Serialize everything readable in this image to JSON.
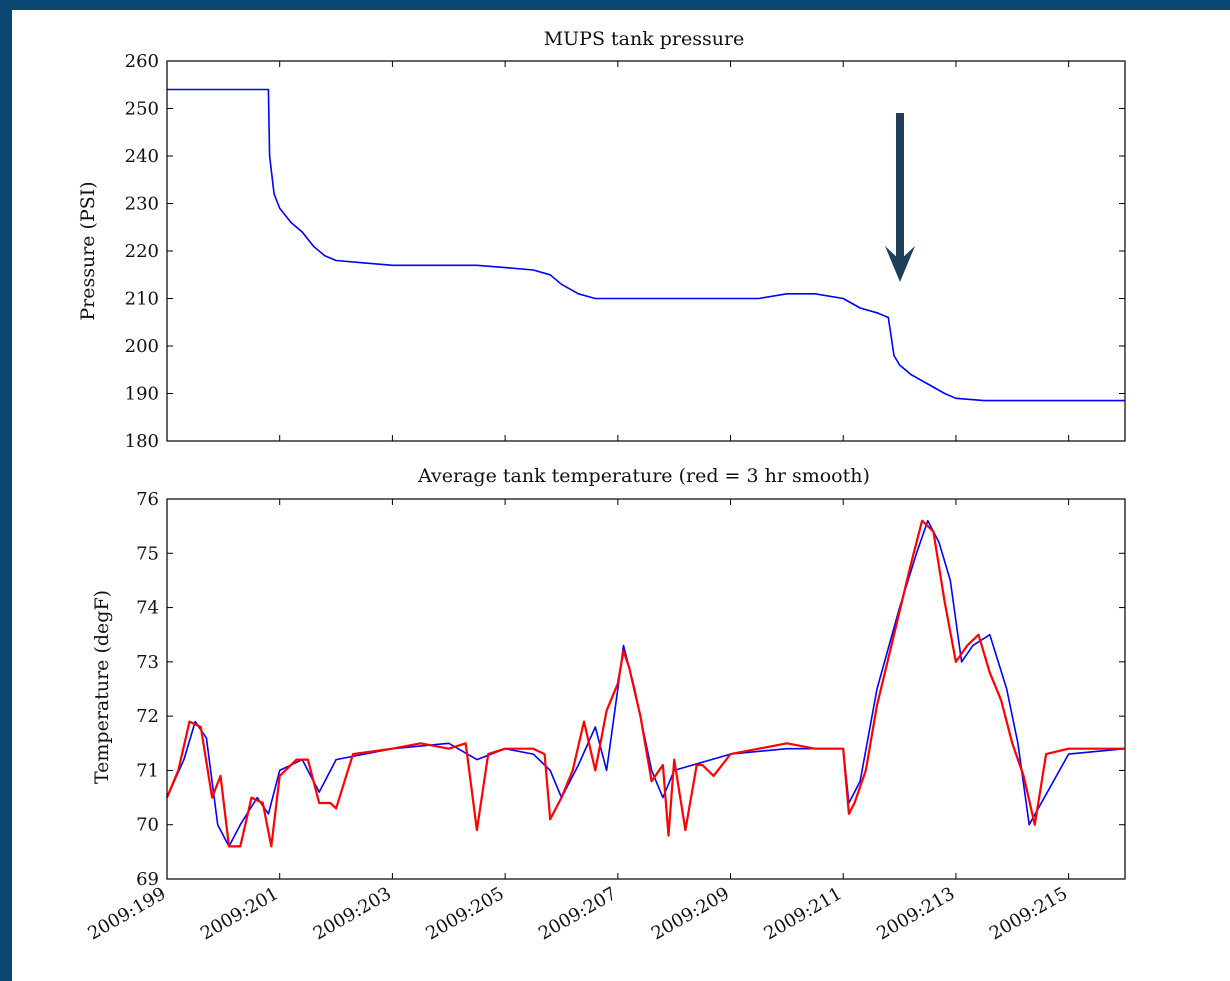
{
  "chart_data": [
    {
      "type": "line",
      "title": "MUPS tank pressure",
      "xlabel": "",
      "ylabel": "Pressure (PSI)",
      "xlim": [
        199,
        216
      ],
      "ylim": [
        180,
        260
      ],
      "yticks": [
        180,
        190,
        200,
        210,
        220,
        230,
        240,
        250,
        260
      ],
      "grid": false,
      "annotation": "downward arrow at day 212",
      "colors": {
        "line": "#0000ff",
        "arrow": "#1f3f5a"
      },
      "series": [
        {
          "color": "#0000ff",
          "x": [
            199.0,
            199.8,
            200.5,
            200.8,
            200.82,
            200.9,
            201.0,
            201.2,
            201.4,
            201.6,
            201.8,
            202.0,
            202.5,
            203.0,
            203.5,
            204.0,
            204.5,
            205.0,
            205.5,
            205.8,
            206.0,
            206.3,
            206.6,
            207.0,
            207.5,
            208.0,
            208.5,
            209.0,
            209.5,
            210.0,
            210.5,
            211.0,
            211.3,
            211.6,
            211.8,
            211.9,
            212.0,
            212.2,
            212.5,
            212.8,
            213.0,
            213.5,
            214.0,
            215.0,
            216.0
          ],
          "y": [
            254,
            254,
            254,
            254,
            240,
            232,
            229,
            226,
            224,
            221,
            219,
            218,
            217.5,
            217,
            217,
            217,
            217,
            216.5,
            216,
            215,
            213,
            211,
            210,
            210,
            210,
            210,
            210,
            210,
            210,
            211,
            211,
            210,
            208,
            207,
            206,
            198,
            196,
            194,
            192,
            190,
            189,
            188.5,
            188.5,
            188.5,
            188.5
          ]
        }
      ]
    },
    {
      "type": "line",
      "title": "Average tank temperature (red = 3 hr smooth)",
      "xlabel": "",
      "ylabel": "Temperature (degF)",
      "xlim": [
        199,
        216
      ],
      "ylim": [
        69,
        76
      ],
      "yticks": [
        69,
        70,
        71,
        72,
        73,
        74,
        75,
        76
      ],
      "xticks": [
        "2009:199",
        "2009:201",
        "2009:203",
        "2009:205",
        "2009:207",
        "2009:209",
        "2009:211",
        "2009:213",
        "2009:215"
      ],
      "grid": false,
      "colors": {
        "raw": "#0000ff",
        "smooth": "#ff0000"
      },
      "series": [
        {
          "color": "#0000ff",
          "x": [
            199.0,
            199.3,
            199.5,
            199.7,
            199.9,
            200.1,
            200.3,
            200.6,
            200.8,
            201.0,
            201.4,
            201.7,
            202.0,
            203.0,
            204.0,
            204.5,
            205.0,
            205.5,
            205.8,
            206.0,
            206.3,
            206.6,
            206.8,
            207.0,
            207.1,
            207.3,
            207.6,
            207.8,
            208.0,
            209.0,
            210.0,
            211.0,
            211.1,
            211.3,
            211.6,
            212.0,
            212.3,
            212.5,
            212.7,
            212.9,
            213.1,
            213.3,
            213.6,
            213.9,
            214.1,
            214.3,
            215.0,
            216.0
          ],
          "y": [
            70.5,
            71.2,
            71.9,
            71.6,
            70.0,
            69.6,
            70.0,
            70.5,
            70.2,
            71.0,
            71.2,
            70.6,
            71.2,
            71.4,
            71.5,
            71.2,
            71.4,
            71.3,
            71.0,
            70.5,
            71.1,
            71.8,
            71.0,
            72.5,
            73.3,
            72.5,
            71.0,
            70.5,
            71.0,
            71.3,
            71.4,
            71.4,
            70.4,
            70.8,
            72.5,
            74.0,
            75.0,
            75.6,
            75.2,
            74.5,
            73.0,
            73.3,
            73.5,
            72.5,
            71.5,
            70.0,
            71.3,
            71.4
          ]
        },
        {
          "color": "#ff0000",
          "x": [
            199.0,
            199.2,
            199.4,
            199.6,
            199.8,
            199.95,
            200.1,
            200.3,
            200.5,
            200.7,
            200.85,
            201.0,
            201.3,
            201.5,
            201.7,
            201.9,
            202.0,
            202.3,
            203.0,
            203.5,
            204.0,
            204.3,
            204.5,
            204.7,
            205.0,
            205.5,
            205.7,
            205.8,
            206.0,
            206.2,
            206.4,
            206.6,
            206.8,
            207.0,
            207.1,
            207.2,
            207.4,
            207.6,
            207.8,
            207.9,
            208.0,
            208.2,
            208.4,
            208.5,
            208.7,
            209.0,
            209.5,
            210.0,
            210.5,
            211.0,
            211.1,
            211.2,
            211.4,
            211.6,
            211.9,
            212.2,
            212.4,
            212.6,
            212.8,
            213.0,
            213.2,
            213.4,
            213.6,
            213.8,
            214.0,
            214.2,
            214.4,
            214.6,
            215.0,
            215.5,
            216.0
          ],
          "y": [
            70.5,
            71.0,
            71.9,
            71.8,
            70.5,
            70.9,
            69.6,
            69.6,
            70.5,
            70.4,
            69.6,
            70.9,
            71.2,
            71.2,
            70.4,
            70.4,
            70.3,
            71.3,
            71.4,
            71.5,
            71.4,
            71.5,
            69.9,
            71.3,
            71.4,
            71.4,
            71.3,
            70.1,
            70.5,
            71.0,
            71.9,
            71.0,
            72.1,
            72.6,
            73.2,
            72.9,
            72.0,
            70.8,
            71.1,
            69.8,
            71.2,
            69.9,
            71.1,
            71.1,
            70.9,
            71.3,
            71.4,
            71.5,
            71.4,
            71.4,
            70.2,
            70.4,
            71.0,
            72.2,
            73.5,
            74.8,
            75.6,
            75.4,
            74.1,
            73.0,
            73.3,
            73.5,
            72.8,
            72.3,
            71.5,
            70.9,
            70.0,
            71.3,
            71.4,
            71.4,
            71.4
          ]
        }
      ]
    }
  ]
}
